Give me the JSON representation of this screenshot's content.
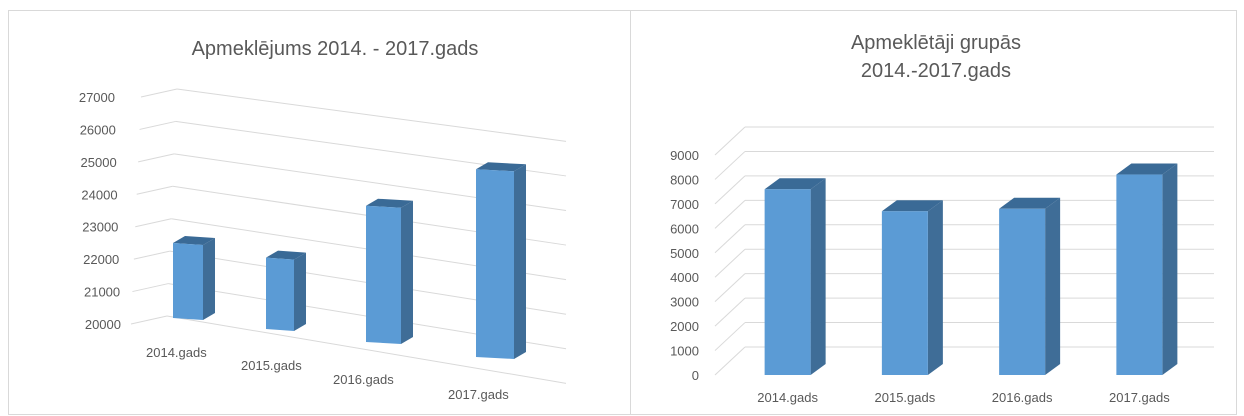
{
  "chart_data": [
    {
      "type": "bar",
      "title": "Apmeklējums 2014. - 2017.gads",
      "categories": [
        "2014.gads",
        "2015.gads",
        "2016.gads",
        "2017.gads"
      ],
      "values": [
        22300,
        22100,
        24000,
        25300
      ],
      "ylim": [
        20000,
        27000
      ],
      "yticks": [
        "20000",
        "21000",
        "22000",
        "23000",
        "24000",
        "25000",
        "26000",
        "27000"
      ],
      "xlabel": "",
      "ylabel": "",
      "legend": "none",
      "grid": true,
      "colors": {
        "front": "#5b9bd5",
        "side": "#3f6d97",
        "top": "#3a6a96"
      }
    },
    {
      "type": "bar",
      "title": "Apmeklētāji grupās 2014.-2017.gads",
      "title_lines": [
        "Apmeklētāji grupās",
        "2014.-2017.gads"
      ],
      "categories": [
        "2014.gads",
        "2015.gads",
        "2016.gads",
        "2017.gads"
      ],
      "values": [
        7600,
        6700,
        6800,
        8200
      ],
      "ylim": [
        0,
        9000
      ],
      "yticks": [
        "0",
        "1000",
        "2000",
        "3000",
        "4000",
        "5000",
        "6000",
        "7000",
        "8000",
        "9000"
      ],
      "xlabel": "",
      "ylabel": "",
      "legend": "none",
      "grid": true,
      "colors": {
        "front": "#5b9bd5",
        "side": "#3f6d97",
        "top": "#3a6a96"
      }
    }
  ]
}
